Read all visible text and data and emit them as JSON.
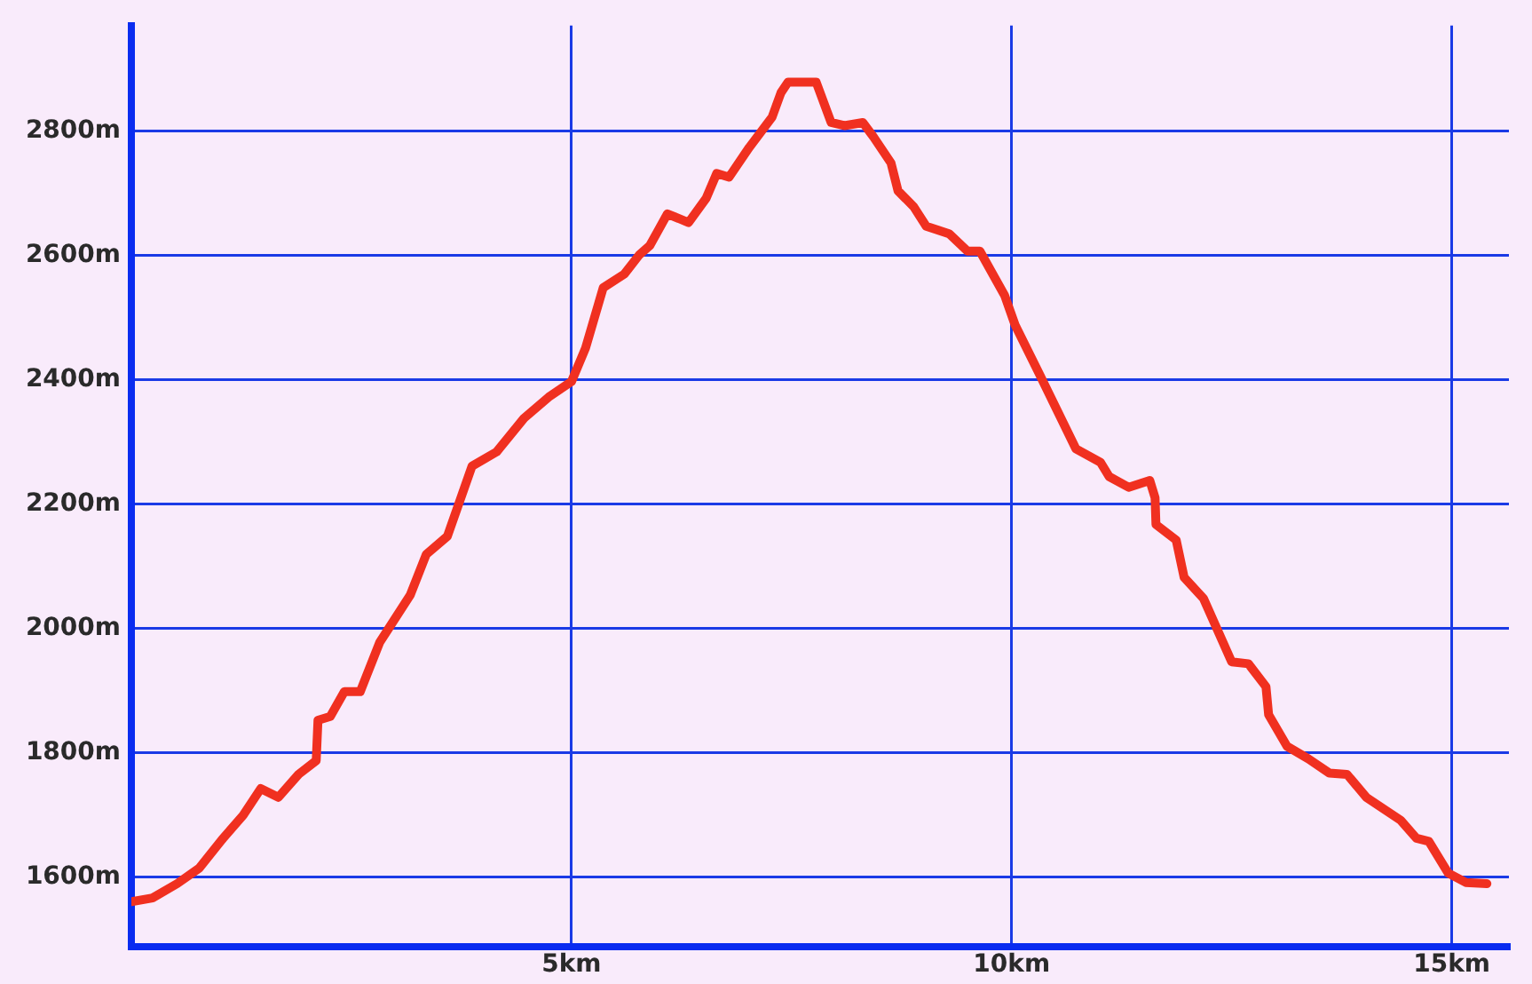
{
  "chart_data": {
    "type": "line",
    "x": [
      0,
      0.24,
      0.52,
      0.77,
      1.03,
      1.27,
      1.47,
      1.67,
      1.9,
      2.1,
      2.12,
      2.26,
      2.42,
      2.6,
      2.82,
      3.17,
      3.35,
      3.59,
      3.87,
      4.15,
      4.46,
      4.74,
      5.0,
      5.16,
      5.36,
      5.6,
      5.77,
      5.89,
      6.09,
      6.33,
      6.53,
      6.65,
      6.79,
      7.02,
      7.28,
      7.38,
      7.46,
      7.78,
      7.95,
      8.1,
      8.31,
      8.43,
      8.63,
      8.71,
      8.89,
      9.03,
      9.29,
      9.5,
      9.64,
      9.92,
      10.04,
      10.32,
      10.73,
      11.01,
      11.11,
      11.33,
      11.57,
      11.63,
      11.64,
      11.87,
      11.96,
      12.18,
      12.5,
      12.69,
      12.89,
      12.92,
      13.13,
      13.37,
      13.61,
      13.81,
      14.03,
      14.42,
      14.6,
      14.74,
      14.96,
      15.16,
      15.4
    ],
    "series": [
      {
        "color": "#f03020",
        "values": [
          1560,
          1566,
          1589,
          1614,
          1660,
          1699,
          1742,
          1728,
          1765,
          1787,
          1852,
          1858,
          1898,
          1898,
          1977,
          2054,
          2119,
          2148,
          2261,
          2284,
          2338,
          2372,
          2397,
          2451,
          2548,
          2570,
          2601,
          2616,
          2667,
          2653,
          2692,
          2732,
          2726,
          2774,
          2823,
          2862,
          2879,
          2879,
          2814,
          2809,
          2814,
          2791,
          2749,
          2704,
          2678,
          2647,
          2635,
          2607,
          2607,
          2536,
          2488,
          2408,
          2289,
          2267,
          2244,
          2227,
          2238,
          2210,
          2167,
          2142,
          2082,
          2048,
          1946,
          1943,
          1906,
          1861,
          1810,
          1790,
          1767,
          1765,
          1728,
          1691,
          1662,
          1657,
          1606,
          1591,
          1589
        ]
      }
    ],
    "xlim": [
      0,
      15.65
    ],
    "ylim": [
      1487,
      2970
    ],
    "xticks": [
      {
        "value": 5,
        "label": "5km"
      },
      {
        "value": 10,
        "label": "10km"
      },
      {
        "value": 15,
        "label": "15km"
      }
    ],
    "yticks": [
      {
        "value": 1600,
        "label": "1600m"
      },
      {
        "value": 1800,
        "label": "1800m"
      },
      {
        "value": 2000,
        "label": "2000m"
      },
      {
        "value": 2200,
        "label": "2200m"
      },
      {
        "value": 2400,
        "label": "2400m"
      },
      {
        "value": 2600,
        "label": "2600m"
      },
      {
        "value": 2800,
        "label": "2800m"
      }
    ],
    "grid": true,
    "marker": "none",
    "line_style": "solid"
  }
}
